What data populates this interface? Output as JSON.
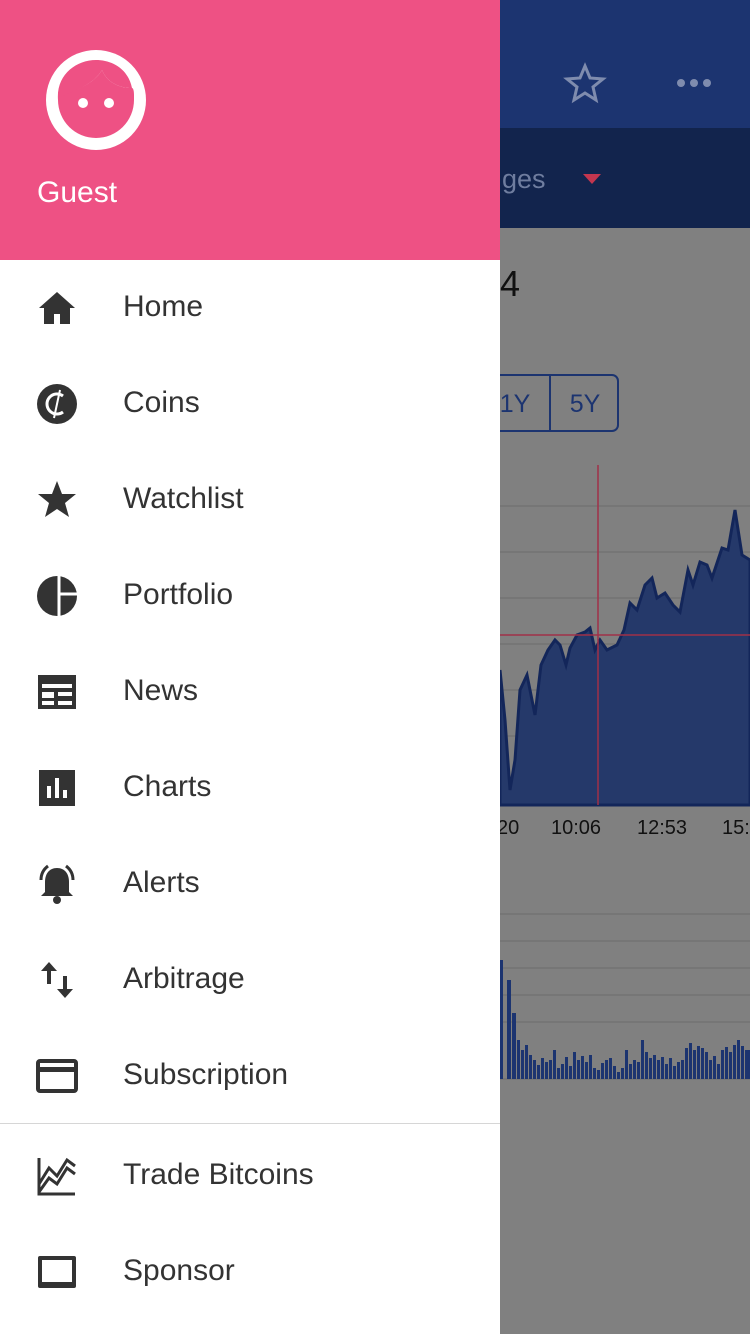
{
  "drawer": {
    "user": "Guest",
    "menu": [
      "Home",
      "Coins",
      "Watchlist",
      "Portfolio",
      "News",
      "Charts",
      "Alerts",
      "Arbitrage",
      "Subscription"
    ],
    "secondary_menu": [
      "Trade Bitcoins",
      "Sponsor"
    ]
  },
  "background": {
    "tab_label": "ges",
    "price_fragment": "4",
    "range_buttons": [
      "1Y",
      "5Y"
    ],
    "time_labels": [
      "20",
      "10:06",
      "12:53",
      "15:"
    ]
  }
}
